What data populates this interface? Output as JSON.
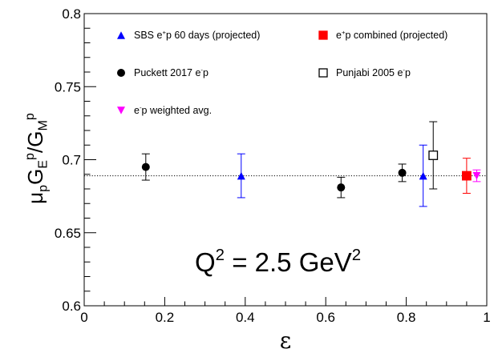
{
  "chart_data": {
    "type": "scatter",
    "xlabel": "ε",
    "ylabel": {
      "parts": [
        {
          "t": "μ",
          "s": "base"
        },
        {
          "t": "p",
          "s": "sub"
        },
        {
          "t": "G",
          "s": "base"
        },
        {
          "t": "E",
          "s": "sub"
        },
        {
          "t": "p",
          "s": "sup"
        },
        {
          "t": "/G",
          "s": "base"
        },
        {
          "t": "M",
          "s": "sub"
        },
        {
          "t": "p",
          "s": "sup"
        }
      ]
    },
    "xlim": [
      0,
      1
    ],
    "ylim": [
      0.6,
      0.8
    ],
    "xticks": [
      0,
      0.2,
      0.4,
      0.6,
      0.8,
      1
    ],
    "xtick_labels": [
      "0",
      "0.2",
      "0.4",
      "0.6",
      "0.8",
      "1"
    ],
    "yticks": [
      0.6,
      0.65,
      0.7,
      0.75,
      0.8
    ],
    "ytick_labels": [
      "0.6",
      "0.65",
      "0.7",
      "0.75",
      "0.8"
    ],
    "x_minor_step": 0.05,
    "y_minor_step": 0.01,
    "grid": false,
    "reference_line": {
      "y": 0.689,
      "style": "dotted"
    },
    "annotation": {
      "parts": [
        {
          "t": "Q",
          "s": "base"
        },
        {
          "t": "2",
          "s": "sup"
        },
        {
          "t": " = 2.5 GeV",
          "s": "base"
        },
        {
          "t": "2",
          "s": "sup"
        }
      ]
    },
    "series": [
      {
        "name": [
          {
            "t": "SBS e",
            "s": "base"
          },
          {
            "t": "+",
            "s": "sup"
          },
          {
            "t": "p 60 days (projected)",
            "s": "base"
          }
        ],
        "marker": "triangle-up",
        "color": "#0000ff",
        "filled": true,
        "points": [
          {
            "x": 0.39,
            "y": 0.689,
            "err": 0.015
          },
          {
            "x": 0.842,
            "y": 0.689,
            "err": 0.021
          }
        ]
      },
      {
        "name": [
          {
            "t": "e",
            "s": "base"
          },
          {
            "t": "+",
            "s": "sup"
          },
          {
            "t": "p combined (projected)",
            "s": "base"
          }
        ],
        "marker": "square",
        "color": "#ff0000",
        "filled": true,
        "points": [
          {
            "x": 0.95,
            "y": 0.689,
            "err": 0.012
          }
        ]
      },
      {
        "name": [
          {
            "t": "Puckett 2017 e",
            "s": "base"
          },
          {
            "t": "-",
            "s": "sup"
          },
          {
            "t": "p",
            "s": "base"
          }
        ],
        "marker": "circle",
        "color": "#000000",
        "filled": true,
        "points": [
          {
            "x": 0.153,
            "y": 0.695,
            "err": 0.009
          },
          {
            "x": 0.638,
            "y": 0.681,
            "err": 0.007
          },
          {
            "x": 0.79,
            "y": 0.691,
            "err": 0.006
          }
        ]
      },
      {
        "name": [
          {
            "t": "Punjabi 2005 e",
            "s": "base"
          },
          {
            "t": "-",
            "s": "sup"
          },
          {
            "t": "p",
            "s": "base"
          }
        ],
        "marker": "square",
        "color": "#000000",
        "filled": false,
        "points": [
          {
            "x": 0.867,
            "y": 0.703,
            "err": 0.023
          }
        ]
      },
      {
        "name": [
          {
            "t": "e",
            "s": "base"
          },
          {
            "t": "-",
            "s": "sup"
          },
          {
            "t": "p weighted avg.",
            "s": "base"
          }
        ],
        "marker": "triangle-down",
        "color": "#ff00ff",
        "filled": true,
        "points": [
          {
            "x": 0.975,
            "y": 0.689,
            "err": 0.004
          }
        ]
      }
    ]
  }
}
